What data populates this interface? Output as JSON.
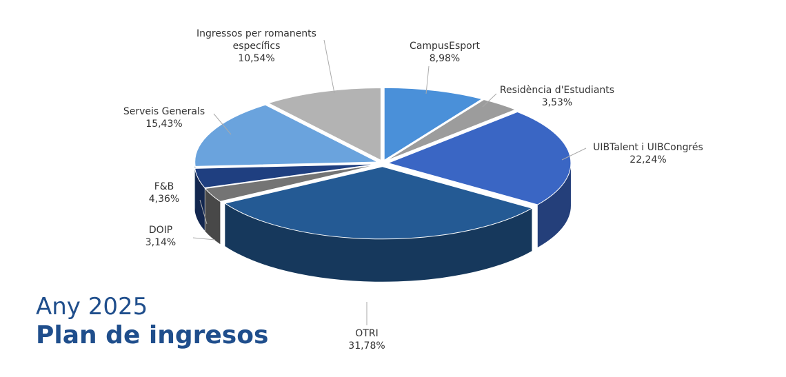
{
  "chart_data": {
    "type": "pie",
    "title": "Any 2025",
    "subtitle": "Plan de ingresos",
    "categories": [
      "CampusEsport",
      "Residència d'Estudiants",
      "UIBTalent i UIBCongrés",
      "OTRI",
      "DOIP",
      "F&B",
      "Serveis Generals",
      "Ingressos per romanents específics"
    ],
    "values": [
      8.98,
      3.53,
      22.24,
      31.78,
      3.14,
      4.36,
      15.43,
      10.54
    ],
    "value_labels": [
      "8,98%",
      "3,53%",
      "22,24%",
      "31,78%",
      "3,14%",
      "4,36%",
      "15,43%",
      "10,54%"
    ],
    "colors": [
      "#4a90d9",
      "#9c9c9c",
      "#3a66c4",
      "#245a94",
      "#747474",
      "#1f3f80",
      "#6aa3dd",
      "#b3b3b3"
    ]
  }
}
